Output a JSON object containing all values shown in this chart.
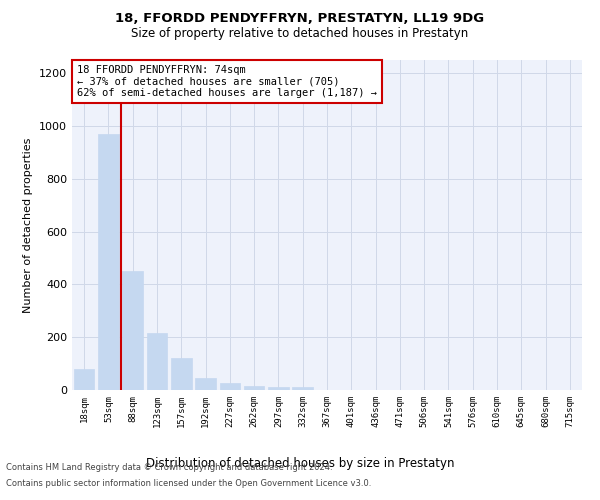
{
  "title_line1": "18, FFORDD PENDYFFRYN, PRESTATYN, LL19 9DG",
  "title_line2": "Size of property relative to detached houses in Prestatyn",
  "xlabel": "Distribution of detached houses by size in Prestatyn",
  "ylabel": "Number of detached properties",
  "bar_labels": [
    "18sqm",
    "53sqm",
    "88sqm",
    "123sqm",
    "157sqm",
    "192sqm",
    "227sqm",
    "262sqm",
    "297sqm",
    "332sqm",
    "367sqm",
    "401sqm",
    "436sqm",
    "471sqm",
    "506sqm",
    "541sqm",
    "576sqm",
    "610sqm",
    "645sqm",
    "680sqm",
    "715sqm"
  ],
  "bar_values": [
    80,
    970,
    450,
    215,
    120,
    45,
    25,
    15,
    13,
    10,
    0,
    0,
    0,
    0,
    0,
    0,
    0,
    0,
    0,
    0,
    0
  ],
  "bar_color": "#c5d8f0",
  "bar_edgecolor": "#c5d8f0",
  "property_line_x": 1.5,
  "annotation_text": "18 FFORDD PENDYFFRYN: 74sqm\n← 37% of detached houses are smaller (705)\n62% of semi-detached houses are larger (1,187) →",
  "annotation_box_color": "#ffffff",
  "annotation_border_color": "#cc0000",
  "vline_color": "#cc0000",
  "ylim": [
    0,
    1250
  ],
  "yticks": [
    0,
    200,
    400,
    600,
    800,
    1000,
    1200
  ],
  "grid_color": "#d0d8e8",
  "bg_color": "#eef2fb",
  "footer_line1": "Contains HM Land Registry data © Crown copyright and database right 2024.",
  "footer_line2": "Contains public sector information licensed under the Open Government Licence v3.0."
}
